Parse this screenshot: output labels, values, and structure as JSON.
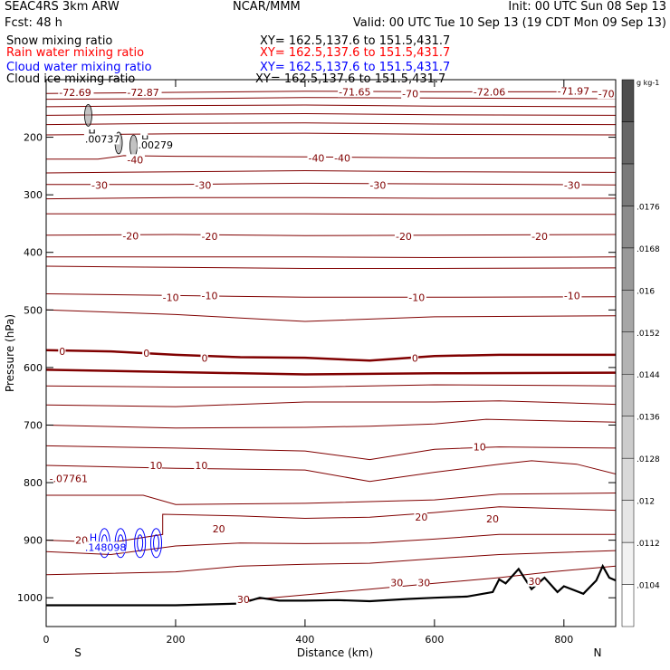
{
  "header": {
    "model": "SEAC4RS  3km ARW",
    "fcst": "Fcst:    48 h",
    "center": "NCAR/MMM",
    "init": "Init: 00 UTC Sun 08 Sep 13",
    "valid": "Valid: 00 UTC Tue 10 Sep 13 (19 CDT Mon 09 Sep 13)",
    "fields": [
      {
        "label": "Snow mixing ratio",
        "xy": "XY= 162.5,137.6 to 151.5,431.7",
        "color": "#000000"
      },
      {
        "label": "Rain water mixing ratio",
        "xy": "XY= 162.5,137.6 to 151.5,431.7",
        "color": "#ff0000"
      },
      {
        "label": "Cloud water mixing ratio",
        "xy": "XY= 162.5,137.6 to 151.5,431.7",
        "color": "#0000ff"
      },
      {
        "label": "Cloud ice mixing ratio",
        "xy": "XY= 162.5,137.6 to 151.5,431.7",
        "color": "#000000"
      }
    ]
  },
  "chart_data": {
    "type": "cross-section contour",
    "xlabel": "Distance (km)",
    "ylabel": "Pressure (hPa)",
    "xlim": [
      0,
      880
    ],
    "ylim": [
      1050,
      100
    ],
    "x_ticks": [
      0,
      200,
      400,
      600,
      800
    ],
    "y_ticks": [
      200,
      300,
      400,
      500,
      600,
      700,
      800,
      900,
      1000
    ],
    "end_labels": {
      "left": "S",
      "right": "N"
    },
    "colors": {
      "temperature": "#800000",
      "cloud_water": "#0000ff",
      "ice": "#000000",
      "terrain": "#000000"
    },
    "isotherms": [
      {
        "temp": -70,
        "points": [
          [
            0,
            124
          ],
          [
            200,
            122
          ],
          [
            400,
            120
          ],
          [
            600,
            121
          ],
          [
            880,
            121
          ]
        ]
      },
      {
        "temp": -70,
        "points": [
          [
            0,
            134
          ],
          [
            200,
            133
          ],
          [
            400,
            131
          ],
          [
            600,
            132
          ],
          [
            880,
            133
          ]
        ]
      },
      {
        "temp": -60,
        "points": [
          [
            0,
            147
          ],
          [
            200,
            145
          ],
          [
            400,
            144
          ],
          [
            600,
            146
          ],
          [
            880,
            147
          ]
        ]
      },
      {
        "temp": -60,
        "points": [
          [
            0,
            162
          ],
          [
            200,
            160
          ],
          [
            400,
            159
          ],
          [
            600,
            161
          ],
          [
            880,
            162
          ]
        ]
      },
      {
        "temp": -50,
        "points": [
          [
            0,
            178
          ],
          [
            200,
            176
          ],
          [
            400,
            175
          ],
          [
            600,
            177
          ],
          [
            880,
            178
          ]
        ]
      },
      {
        "temp": -50,
        "points": [
          [
            0,
            196
          ],
          [
            200,
            194
          ],
          [
            400,
            193
          ],
          [
            600,
            195
          ],
          [
            880,
            196
          ]
        ]
      },
      {
        "temp": -40,
        "points": [
          [
            0,
            238
          ],
          [
            80,
            238
          ],
          [
            120,
            232
          ],
          [
            200,
            233
          ],
          [
            400,
            234
          ],
          [
            600,
            236
          ],
          [
            880,
            236
          ]
        ]
      },
      {
        "temp": -40,
        "points": [
          [
            0,
            262
          ],
          [
            200,
            260
          ],
          [
            400,
            258
          ],
          [
            600,
            260
          ],
          [
            880,
            261
          ]
        ]
      },
      {
        "temp": -30,
        "points": [
          [
            0,
            282
          ],
          [
            200,
            282
          ],
          [
            400,
            280
          ],
          [
            600,
            281
          ],
          [
            880,
            283
          ]
        ]
      },
      {
        "temp": -30,
        "points": [
          [
            0,
            307
          ],
          [
            200,
            305
          ],
          [
            400,
            305
          ],
          [
            600,
            306
          ],
          [
            880,
            306
          ]
        ]
      },
      {
        "temp": -20,
        "points": [
          [
            0,
            333
          ],
          [
            200,
            333
          ],
          [
            400,
            333
          ],
          [
            600,
            334
          ],
          [
            880,
            334
          ]
        ]
      },
      {
        "temp": -20,
        "points": [
          [
            0,
            370
          ],
          [
            200,
            369
          ],
          [
            400,
            371
          ],
          [
            600,
            370
          ],
          [
            880,
            369
          ]
        ]
      },
      {
        "temp": -20,
        "points": [
          [
            0,
            408
          ],
          [
            200,
            408
          ],
          [
            400,
            408
          ],
          [
            600,
            409
          ],
          [
            880,
            408
          ]
        ]
      },
      {
        "temp": -10,
        "points": [
          [
            0,
            424
          ],
          [
            200,
            426
          ],
          [
            400,
            428
          ],
          [
            600,
            428
          ],
          [
            880,
            427
          ]
        ]
      },
      {
        "temp": -10,
        "points": [
          [
            0,
            472
          ],
          [
            200,
            475
          ],
          [
            400,
            478
          ],
          [
            600,
            478
          ],
          [
            880,
            477
          ]
        ]
      },
      {
        "temp": -10,
        "points": [
          [
            0,
            500
          ],
          [
            200,
            508
          ],
          [
            400,
            520
          ],
          [
            600,
            512
          ],
          [
            880,
            510
          ]
        ]
      },
      {
        "temp": 0,
        "points": [
          [
            0,
            570
          ],
          [
            100,
            572
          ],
          [
            200,
            578
          ],
          [
            300,
            582
          ],
          [
            400,
            583
          ],
          [
            500,
            588
          ],
          [
            600,
            580
          ],
          [
            700,
            578
          ],
          [
            880,
            578
          ]
        ]
      },
      {
        "temp": 0,
        "points": [
          [
            0,
            604
          ],
          [
            200,
            608
          ],
          [
            400,
            612
          ],
          [
            600,
            610
          ],
          [
            880,
            609
          ]
        ]
      },
      {
        "temp": 10,
        "points": [
          [
            0,
            632
          ],
          [
            200,
            634
          ],
          [
            400,
            634
          ],
          [
            600,
            630
          ],
          [
            880,
            632
          ]
        ]
      },
      {
        "temp": 10,
        "points": [
          [
            0,
            665
          ],
          [
            200,
            668
          ],
          [
            400,
            660
          ],
          [
            600,
            660
          ],
          [
            700,
            658
          ],
          [
            880,
            664
          ]
        ]
      },
      {
        "temp": 10,
        "points": [
          [
            0,
            700
          ],
          [
            200,
            705
          ],
          [
            400,
            704
          ],
          [
            500,
            702
          ],
          [
            600,
            698
          ],
          [
            680,
            690
          ],
          [
            880,
            695
          ]
        ]
      },
      {
        "temp": 10,
        "points": [
          [
            0,
            736
          ],
          [
            200,
            740
          ],
          [
            400,
            745
          ],
          [
            500,
            760
          ],
          [
            600,
            742
          ],
          [
            700,
            738
          ],
          [
            880,
            740
          ]
        ]
      },
      {
        "temp": 10,
        "points": [
          [
            0,
            770
          ],
          [
            200,
            775
          ],
          [
            400,
            778
          ],
          [
            500,
            798
          ],
          [
            600,
            782
          ],
          [
            700,
            768
          ],
          [
            750,
            762
          ],
          [
            820,
            768
          ],
          [
            880,
            785
          ]
        ]
      },
      {
        "temp": 20,
        "points": [
          [
            0,
            822
          ],
          [
            150,
            822
          ],
          [
            200,
            838
          ],
          [
            400,
            836
          ],
          [
            600,
            830
          ],
          [
            700,
            820
          ],
          [
            880,
            818
          ]
        ]
      },
      {
        "temp": 20,
        "points": [
          [
            0,
            900
          ],
          [
            100,
            904
          ],
          [
            180,
            890
          ],
          [
            180,
            855
          ],
          [
            300,
            858
          ],
          [
            400,
            862
          ],
          [
            500,
            860
          ],
          [
            600,
            852
          ],
          [
            700,
            842
          ],
          [
            880,
            848
          ]
        ]
      },
      {
        "temp": 20,
        "points": [
          [
            0,
            920
          ],
          [
            100,
            925
          ],
          [
            200,
            910
          ],
          [
            300,
            905
          ],
          [
            400,
            906
          ],
          [
            500,
            905
          ],
          [
            600,
            898
          ],
          [
            700,
            890
          ],
          [
            880,
            890
          ]
        ]
      },
      {
        "temp": 30,
        "points": [
          [
            0,
            960
          ],
          [
            200,
            955
          ],
          [
            300,
            945
          ],
          [
            400,
            942
          ],
          [
            500,
            940
          ],
          [
            600,
            932
          ],
          [
            700,
            925
          ],
          [
            880,
            918
          ]
        ]
      },
      {
        "temp": 30,
        "points": [
          [
            300,
            1005
          ],
          [
            400,
            995
          ],
          [
            500,
            985
          ],
          [
            600,
            975
          ],
          [
            700,
            965
          ],
          [
            780,
            955
          ],
          [
            880,
            945
          ]
        ]
      }
    ],
    "contour_labels": [
      {
        "text": "-72.69",
        "x": 20,
        "p": 122,
        "color": "#800000"
      },
      {
        "text": "-72.87",
        "x": 125,
        "p": 122,
        "color": "#800000"
      },
      {
        "text": "-71.65",
        "x": 452,
        "p": 121,
        "color": "#800000"
      },
      {
        "text": "-70",
        "x": 550,
        "p": 124,
        "color": "#800000"
      },
      {
        "text": "-72.06",
        "x": 660,
        "p": 121,
        "color": "#800000"
      },
      {
        "text": "-71.97",
        "x": 790,
        "p": 120,
        "color": "#800000"
      },
      {
        "text": "-70",
        "x": 853,
        "p": 124,
        "color": "#800000"
      },
      {
        "text": "-40",
        "x": 125,
        "p": 239,
        "color": "#800000"
      },
      {
        "text": "-40",
        "x": 405,
        "p": 236,
        "color": "#800000"
      },
      {
        "text": "-40",
        "x": 445,
        "p": 236,
        "color": "#800000"
      },
      {
        "text": "-30",
        "x": 70,
        "p": 283,
        "color": "#800000"
      },
      {
        "text": "-30",
        "x": 230,
        "p": 283,
        "color": "#800000"
      },
      {
        "text": "-30",
        "x": 500,
        "p": 283,
        "color": "#800000"
      },
      {
        "text": "-30",
        "x": 800,
        "p": 283,
        "color": "#800000"
      },
      {
        "text": "-20",
        "x": 118,
        "p": 371,
        "color": "#800000"
      },
      {
        "text": "-20",
        "x": 240,
        "p": 372,
        "color": "#800000"
      },
      {
        "text": "-20",
        "x": 540,
        "p": 372,
        "color": "#800000"
      },
      {
        "text": "-20",
        "x": 750,
        "p": 372,
        "color": "#800000"
      },
      {
        "text": "-10",
        "x": 180,
        "p": 478,
        "color": "#800000"
      },
      {
        "text": "-10",
        "x": 240,
        "p": 475,
        "color": "#800000"
      },
      {
        "text": "-10",
        "x": 560,
        "p": 478,
        "color": "#800000"
      },
      {
        "text": "-10",
        "x": 800,
        "p": 475,
        "color": "#800000"
      },
      {
        "text": "0",
        "x": 20,
        "p": 572,
        "color": "#800000"
      },
      {
        "text": "0",
        "x": 150,
        "p": 575,
        "color": "#800000"
      },
      {
        "text": "0",
        "x": 240,
        "p": 584,
        "color": "#800000"
      },
      {
        "text": "0",
        "x": 565,
        "p": 584,
        "color": "#800000"
      },
      {
        "text": "10",
        "x": 160,
        "p": 770,
        "color": "#800000"
      },
      {
        "text": "10",
        "x": 230,
        "p": 770,
        "color": "#800000"
      },
      {
        "text": "10",
        "x": 660,
        "p": 738,
        "color": "#800000"
      },
      {
        "text": "-.07761",
        "x": 5,
        "p": 793,
        "color": "#800000"
      },
      {
        "text": "20",
        "x": 257,
        "p": 880,
        "color": "#800000"
      },
      {
        "text": "20",
        "x": 570,
        "p": 860,
        "color": "#800000"
      },
      {
        "text": "20",
        "x": 680,
        "p": 863,
        "color": "#800000"
      },
      {
        "text": "20",
        "x": 45,
        "p": 900,
        "color": "#800000"
      },
      {
        "text": "30",
        "x": 532,
        "p": 974,
        "color": "#800000"
      },
      {
        "text": "30",
        "x": 574,
        "p": 974,
        "color": "#800000"
      },
      {
        "text": "30",
        "x": 745,
        "p": 971,
        "color": "#800000"
      },
      {
        "text": "30",
        "x": 295,
        "p": 1003,
        "color": "#800000"
      },
      {
        "text": "H",
        "x": 67,
        "p": 895,
        "color": "#0000ff"
      },
      {
        "text": ".148098",
        "x": 60,
        "p": 912,
        "color": "#0000ff"
      },
      {
        "text": "H",
        "x": 65,
        "p": 193,
        "color": "#000000"
      },
      {
        "text": ".00737",
        "x": 60,
        "p": 203,
        "color": "#000000"
      },
      {
        "text": "H",
        "x": 147,
        "p": 203,
        "color": "#000000"
      },
      {
        "text": ".00279",
        "x": 142,
        "p": 213,
        "color": "#000000"
      }
    ],
    "cloud_water_cells": [
      {
        "x": 90,
        "p": 905
      },
      {
        "x": 115,
        "p": 905
      },
      {
        "x": 145,
        "p": 905
      },
      {
        "x": 170,
        "p": 905
      }
    ],
    "ice_cells": [
      {
        "x": 65,
        "p": 162
      },
      {
        "x": 112,
        "p": 210
      },
      {
        "x": 135,
        "p": 215
      }
    ],
    "terrain": [
      [
        0,
        1013
      ],
      [
        100,
        1013
      ],
      [
        200,
        1013
      ],
      [
        300,
        1010
      ],
      [
        330,
        1000
      ],
      [
        360,
        1005
      ],
      [
        400,
        1005
      ],
      [
        450,
        1004
      ],
      [
        500,
        1006
      ],
      [
        560,
        1002
      ],
      [
        600,
        1000
      ],
      [
        650,
        998
      ],
      [
        690,
        990
      ],
      [
        700,
        968
      ],
      [
        710,
        975
      ],
      [
        730,
        950
      ],
      [
        750,
        985
      ],
      [
        770,
        965
      ],
      [
        790,
        990
      ],
      [
        800,
        980
      ],
      [
        830,
        993
      ],
      [
        850,
        970
      ],
      [
        860,
        945
      ],
      [
        870,
        965
      ],
      [
        880,
        970
      ]
    ],
    "colorbar": {
      "unit": "g kg-1",
      "ticks": [
        ".0104",
        ".0112",
        ".012",
        ".0128",
        ".0136",
        ".0144",
        ".0152",
        ".016",
        ".0168",
        ".0176"
      ],
      "colors": [
        "#ffffff",
        "#f2f2f2",
        "#e6e6e6",
        "#d9d9d9",
        "#cccccc",
        "#bfbfbf",
        "#b3b3b3",
        "#a6a6a6",
        "#999999",
        "#8c8c8c",
        "#7a7a7a",
        "#666666",
        "#4d4d4d"
      ]
    }
  }
}
